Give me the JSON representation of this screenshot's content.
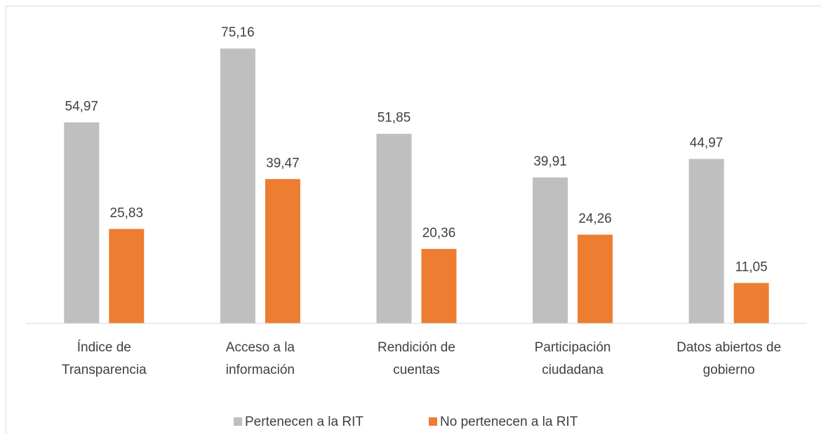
{
  "chart_data": {
    "type": "bar",
    "categories": [
      [
        "Índice de",
        "Transparencia"
      ],
      [
        "Acceso a la",
        "información"
      ],
      [
        "Rendición de",
        "cuentas"
      ],
      [
        "Participación",
        "ciudadana"
      ],
      [
        "Datos abiertos de",
        "gobierno"
      ]
    ],
    "series": [
      {
        "name": "Pertenecen a la RIT",
        "color": "#bfbfbf",
        "values": [
          54.97,
          75.16,
          51.85,
          39.91,
          44.97
        ],
        "value_labels": [
          "54,97",
          "75,16",
          "51,85",
          "39,91",
          "44,97"
        ]
      },
      {
        "name": "No pertenecen a la RIT",
        "color": "#ed7d31",
        "values": [
          25.83,
          39.47,
          20.36,
          24.26,
          11.05
        ],
        "value_labels": [
          "25,83",
          "39,47",
          "20,36",
          "24,26",
          "11,05"
        ]
      }
    ],
    "ylim": [
      0,
      80
    ],
    "legend": "bottom"
  }
}
